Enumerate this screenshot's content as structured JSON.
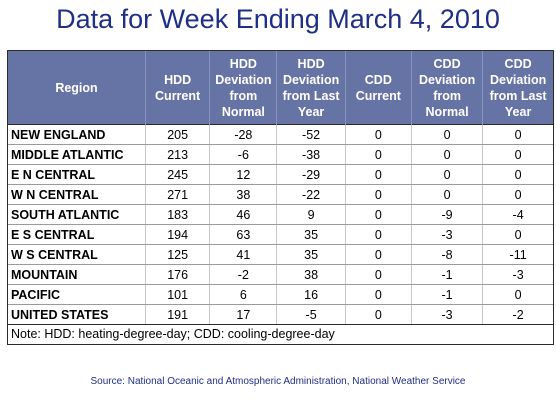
{
  "title": "Data for Week Ending March 4, 2010",
  "table": {
    "headers": [
      "Region",
      "HDD Current",
      "HDD Deviation from Normal",
      "HDD Deviation from Last Year",
      "CDD Current",
      "CDD Deviation from Normal",
      "CDD Deviation from Last Year"
    ],
    "rows": [
      [
        "NEW ENGLAND",
        "205",
        "-28",
        "-52",
        "0",
        "0",
        "0"
      ],
      [
        "MIDDLE ATLANTIC",
        "213",
        "-6",
        "-38",
        "0",
        "0",
        "0"
      ],
      [
        "E N CENTRAL",
        "245",
        "12",
        "-29",
        "0",
        "0",
        "0"
      ],
      [
        "W N CENTRAL",
        "271",
        "38",
        "-22",
        "0",
        "0",
        "0"
      ],
      [
        "SOUTH ATLANTIC",
        "183",
        "46",
        "9",
        "0",
        "-9",
        "-4"
      ],
      [
        "E S CENTRAL",
        "194",
        "63",
        "35",
        "0",
        "-3",
        "0"
      ],
      [
        "W S CENTRAL",
        "125",
        "41",
        "35",
        "0",
        "-8",
        "-11"
      ],
      [
        "MOUNTAIN",
        "176",
        "-2",
        "38",
        "0",
        "-1",
        "-3"
      ],
      [
        "PACIFIC",
        "101",
        "6",
        "16",
        "0",
        "-1",
        "0"
      ],
      [
        "UNITED STATES",
        "191",
        "17",
        "-5",
        "0",
        "-3",
        "-2"
      ]
    ],
    "note": "Note: HDD: heating-degree-day; CDD: cooling-degree-day"
  },
  "source": "Source:  National Oceanic and Atmospheric Administration, National Weather Service",
  "colors": {
    "title": "#1f2f86",
    "header_bg": "#6674a5",
    "header_text": "#ffffff"
  },
  "chart_data": {
    "type": "table",
    "title": "Data for Week Ending March 4, 2010",
    "columns": [
      "Region",
      "HDD Current",
      "HDD Deviation from Normal",
      "HDD Deviation from Last Year",
      "CDD Current",
      "CDD Deviation from Normal",
      "CDD Deviation from Last Year"
    ],
    "rows": [
      {
        "region": "NEW ENGLAND",
        "values": [
          205,
          -28,
          -52,
          0,
          0,
          0
        ]
      },
      {
        "region": "MIDDLE ATLANTIC",
        "values": [
          213,
          -6,
          -38,
          0,
          0,
          0
        ]
      },
      {
        "region": "E N CENTRAL",
        "values": [
          245,
          12,
          -29,
          0,
          0,
          0
        ]
      },
      {
        "region": "W N CENTRAL",
        "values": [
          271,
          38,
          -22,
          0,
          0,
          0
        ]
      },
      {
        "region": "SOUTH ATLANTIC",
        "values": [
          183,
          46,
          9,
          0,
          -9,
          -4
        ]
      },
      {
        "region": "E S CENTRAL",
        "values": [
          194,
          63,
          35,
          0,
          -3,
          0
        ]
      },
      {
        "region": "W S CENTRAL",
        "values": [
          125,
          41,
          35,
          0,
          -8,
          -11
        ]
      },
      {
        "region": "MOUNTAIN",
        "values": [
          176,
          -2,
          38,
          0,
          -1,
          -3
        ]
      },
      {
        "region": "PACIFIC",
        "values": [
          101,
          6,
          16,
          0,
          -1,
          0
        ]
      },
      {
        "region": "UNITED STATES",
        "values": [
          191,
          17,
          -5,
          0,
          -3,
          -2
        ]
      }
    ]
  }
}
